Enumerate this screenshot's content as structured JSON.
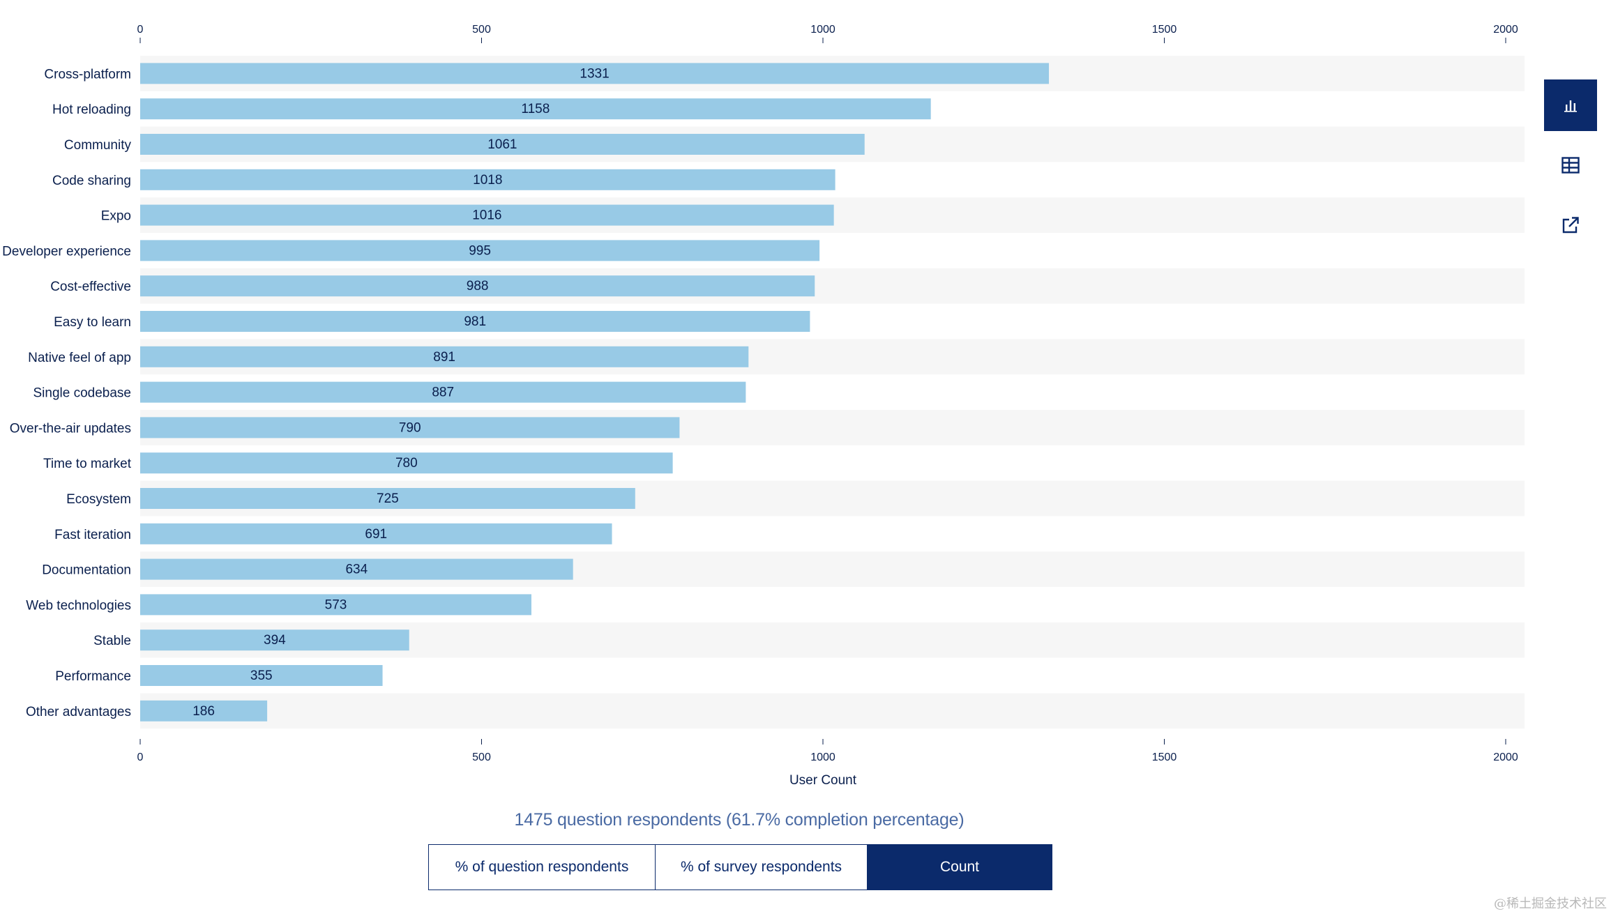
{
  "chart_data": {
    "type": "bar",
    "orientation": "horizontal",
    "title": "",
    "xlabel": "User Count",
    "ylabel": "",
    "xlim": [
      0,
      2000
    ],
    "xticks": [
      0,
      500,
      1000,
      1500,
      2000
    ],
    "categories": [
      "Cross-platform",
      "Hot reloading",
      "Community",
      "Code sharing",
      "Expo",
      "Developer experience",
      "Cost-effective",
      "Easy to learn",
      "Native feel of app",
      "Single codebase",
      "Over-the-air updates",
      "Time to market",
      "Ecosystem",
      "Fast iteration",
      "Documentation",
      "Web technologies",
      "Stable",
      "Performance",
      "Other advantages"
    ],
    "values": [
      1331,
      1158,
      1061,
      1018,
      1016,
      995,
      988,
      981,
      891,
      887,
      790,
      780,
      725,
      691,
      634,
      573,
      394,
      355,
      186
    ],
    "bar_color": "#98cae6",
    "stripe_color": "#f6f6f6"
  },
  "tools": [
    {
      "icon": "bar-chart-icon",
      "active": true
    },
    {
      "icon": "table-icon",
      "active": false
    },
    {
      "icon": "external-link-icon",
      "active": false
    }
  ],
  "footer": {
    "respondents": "1475 question respondents (61.7% completion percentage)",
    "units": [
      {
        "label": "% of question respondents",
        "active": false
      },
      {
        "label": "% of survey respondents",
        "active": false
      },
      {
        "label": "Count",
        "active": true
      }
    ]
  },
  "watermark": "@稀土掘金技术社区",
  "colors": {
    "accent": "#0b2a6b",
    "text": "#0a1f4d",
    "subtle_text": "#4a6aa3"
  }
}
